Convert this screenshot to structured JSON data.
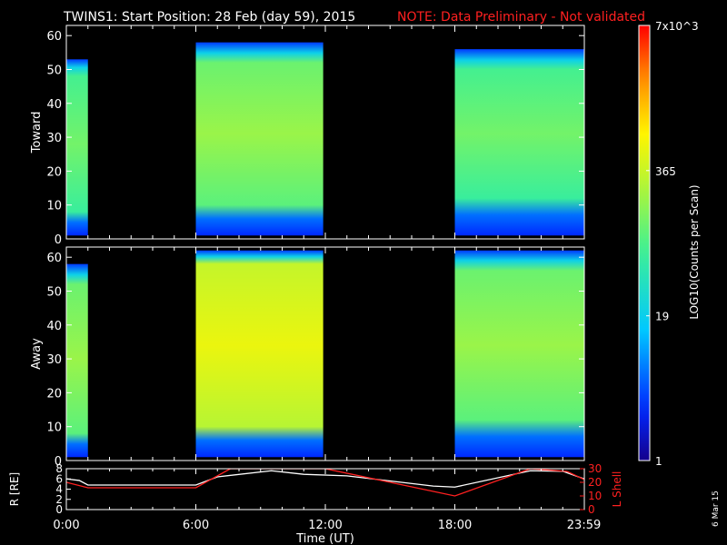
{
  "header": {
    "title": "TWINS1: Start Position: 28 Feb (day  59), 2015",
    "note": "NOTE: Data Preliminary - Not validated"
  },
  "stamp": "6 Mar 15",
  "colors": {
    "background": "#000000",
    "axis": "#ffffff",
    "note": "#ff2020",
    "l_shell": "#ff2020",
    "radius": "#ffffff"
  },
  "colorbar": {
    "label": "LOG10(Counts per Scan)",
    "tick_labels": [
      "7x10^3",
      "365",
      "19",
      "1"
    ],
    "tick_values": [
      7000,
      365,
      19,
      1
    ],
    "scale": "log",
    "colormap": "rainbow (blue - cyan - green - yellow - red)"
  },
  "chart_data": [
    {
      "type": "heatmap",
      "panel": "toward",
      "ylabel": "Toward",
      "xlim_hours": [
        0,
        24
      ],
      "ylim": [
        0,
        63
      ],
      "y_ticks": [
        0,
        10,
        20,
        30,
        40,
        50,
        60
      ],
      "segments": [
        {
          "start": 0.0,
          "end": 1.0,
          "coverage_top": 53,
          "coverage_bottom": 1,
          "core_low": 8,
          "core_high": 48,
          "level": 0.55
        },
        {
          "start": 6.0,
          "end": 11.9,
          "coverage_top": 58,
          "coverage_bottom": 1,
          "core_low": 10,
          "core_high": 52,
          "level": 0.6
        },
        {
          "start": 18.0,
          "end": 23.98,
          "coverage_top": 56,
          "coverage_bottom": 1,
          "core_low": 12,
          "core_high": 50,
          "level": 0.55
        }
      ]
    },
    {
      "type": "heatmap",
      "panel": "away",
      "ylabel": "Away",
      "xlim_hours": [
        0,
        24
      ],
      "ylim": [
        0,
        63
      ],
      "y_ticks": [
        0,
        10,
        20,
        30,
        40,
        50,
        60
      ],
      "segments": [
        {
          "start": 0.0,
          "end": 1.0,
          "coverage_top": 58,
          "coverage_bottom": 1,
          "core_low": 8,
          "core_high": 52,
          "level": 0.6
        },
        {
          "start": 6.0,
          "end": 11.9,
          "coverage_top": 62,
          "coverage_bottom": 1,
          "core_low": 10,
          "core_high": 58,
          "level": 0.72
        },
        {
          "start": 18.0,
          "end": 23.98,
          "coverage_top": 62,
          "coverage_bottom": 1,
          "core_low": 12,
          "core_high": 56,
          "level": 0.6
        }
      ]
    },
    {
      "type": "line",
      "panel": "ephemeris",
      "ylabel_left": "R [RE]",
      "ylabel_right": "L Shell",
      "ylim_left": [
        0,
        8
      ],
      "y_ticks_left": [
        0,
        2,
        4,
        6,
        8
      ],
      "ylim_right": [
        0,
        30
      ],
      "y_ticks_right": [
        0,
        10,
        20,
        30
      ],
      "xlabel": "Time (UT)",
      "x_ticks_hours": [
        0,
        6,
        12,
        18,
        23.98
      ],
      "x_tick_labels": [
        "0:00",
        "6:00",
        "12:00",
        "18:00",
        "23:59"
      ],
      "series": [
        {
          "name": "R",
          "axis": "left",
          "x": [
            0,
            0.6,
            1.0,
            6.0,
            7.0,
            9.5,
            11.0,
            13.0,
            17.0,
            18.0,
            21.5,
            23.0,
            24.0
          ],
          "y": [
            6.0,
            5.7,
            4.8,
            4.8,
            6.4,
            7.6,
            6.9,
            6.6,
            4.6,
            4.4,
            7.6,
            7.5,
            6.0
          ]
        },
        {
          "name": "L Shell",
          "axis": "right",
          "x": [
            0,
            1.0,
            6.0,
            7.6,
            8.2,
            12.0,
            18.0,
            21.5,
            23.2,
            24.0
          ],
          "y": [
            20,
            16,
            16,
            30,
            30,
            30,
            10,
            30,
            28,
            22
          ]
        }
      ]
    }
  ]
}
